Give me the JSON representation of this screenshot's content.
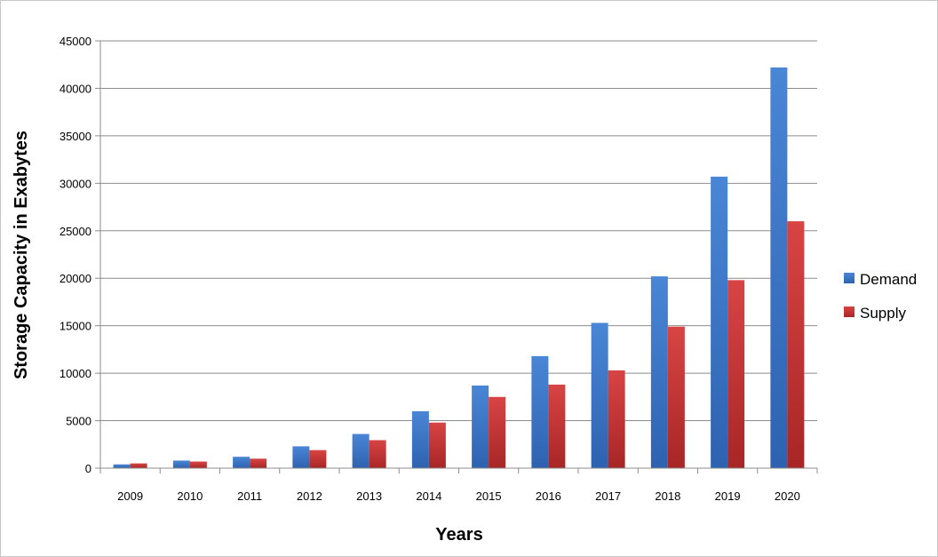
{
  "chart_data": {
    "type": "bar",
    "title": "",
    "xlabel": "Years",
    "ylabel": "Storage Capacity in Exabytes",
    "categories": [
      "2009",
      "2010",
      "2011",
      "2012",
      "2013",
      "2014",
      "2015",
      "2016",
      "2017",
      "2018",
      "2019",
      "2020"
    ],
    "series": [
      {
        "name": "Demand",
        "color": "#3f7bcf",
        "values": [
          400,
          800,
          1200,
          2300,
          3600,
          6000,
          8700,
          11800,
          15300,
          20200,
          30700,
          42200
        ]
      },
      {
        "name": "Supply",
        "color": "#cc3b3b",
        "values": [
          500,
          700,
          1000,
          1900,
          2950,
          4800,
          7500,
          8800,
          10300,
          14900,
          19800,
          26000
        ]
      }
    ],
    "ylim": [
      0,
      45000
    ],
    "yticks": [
      0,
      5000,
      10000,
      15000,
      20000,
      25000,
      30000,
      35000,
      40000,
      45000
    ],
    "grid": true,
    "legend_position": "right"
  }
}
